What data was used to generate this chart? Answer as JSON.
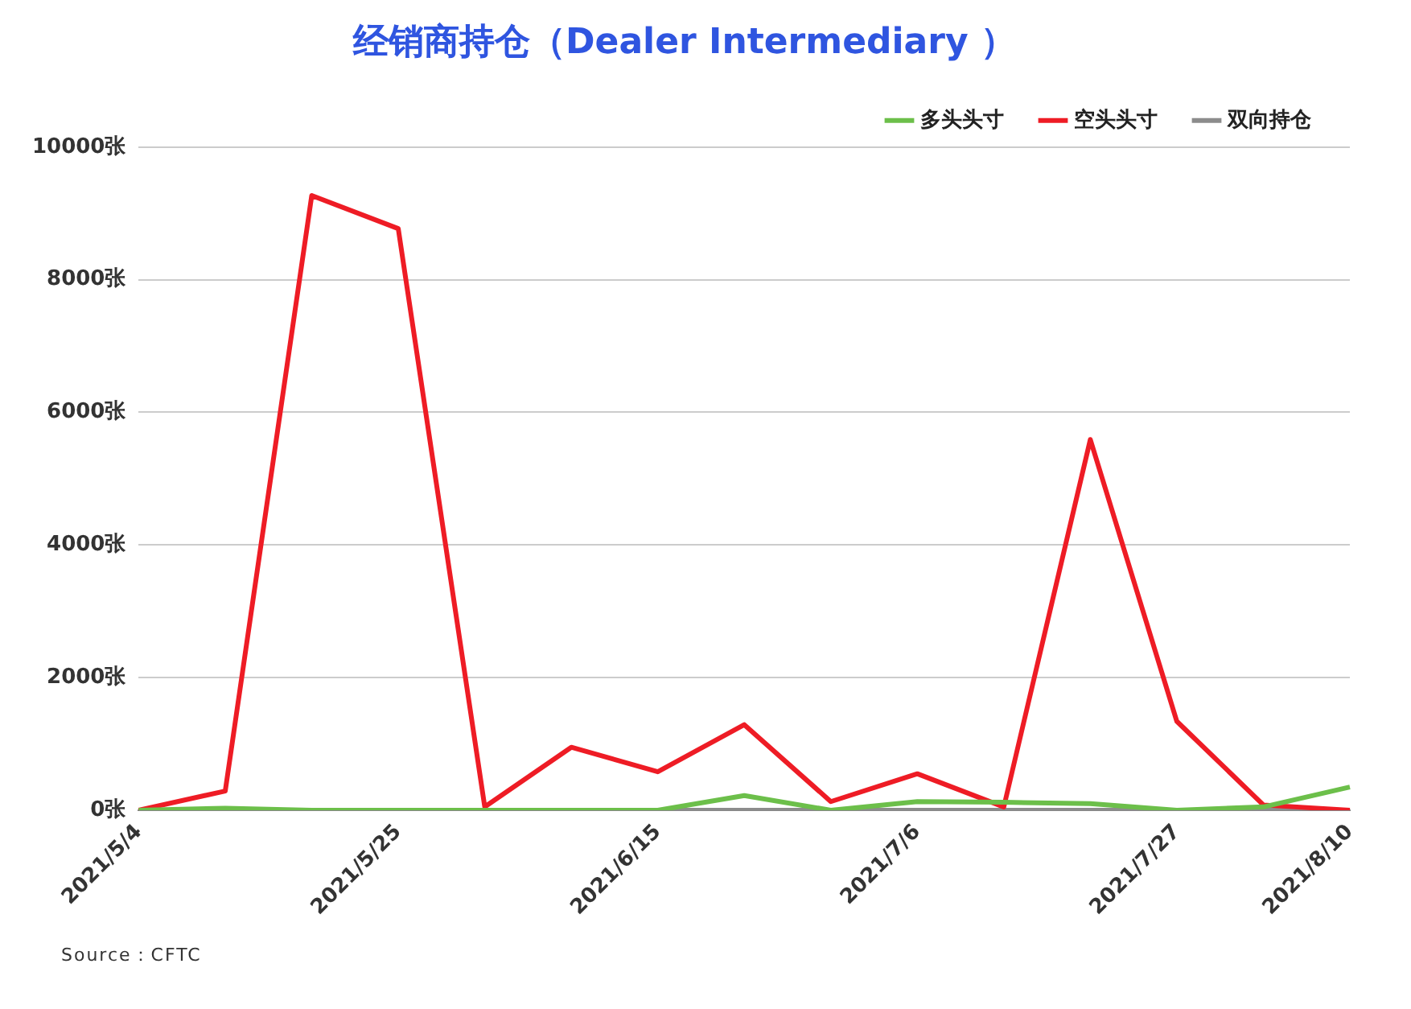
{
  "chart_data": {
    "type": "line",
    "title": "经销商持仓（Dealer Intermediary ）",
    "categories": [
      "2021/5/4",
      null,
      null,
      "2021/5/25",
      null,
      null,
      "2021/6/15",
      null,
      null,
      "2021/7/6",
      null,
      null,
      "2021/7/27",
      null,
      "2021/8/10"
    ],
    "series": [
      {
        "name": "多头头寸",
        "color": "#6cbf4a",
        "values": [
          0,
          30,
          0,
          0,
          0,
          0,
          0,
          220,
          0,
          130,
          120,
          100,
          0,
          50,
          350
        ]
      },
      {
        "name": "空头头寸",
        "color": "#ee1c25",
        "values": [
          0,
          290,
          9270,
          8770,
          50,
          950,
          580,
          1290,
          130,
          550,
          50,
          5590,
          1340,
          80,
          0
        ]
      },
      {
        "name": "双向持仓",
        "color": "#8c8c8c",
        "values": [
          0,
          0,
          0,
          0,
          0,
          0,
          0,
          0,
          0,
          0,
          0,
          0,
          0,
          0,
          0
        ]
      }
    ],
    "ylim": [
      0,
      10000
    ],
    "yticks": [
      {
        "value": 0,
        "label": "0张"
      },
      {
        "value": 2000,
        "label": "2000张"
      },
      {
        "value": 4000,
        "label": "4000张"
      },
      {
        "value": 6000,
        "label": "6000张"
      },
      {
        "value": 8000,
        "label": "8000张"
      },
      {
        "value": 10000,
        "label": "10000张"
      }
    ],
    "grid": "y",
    "legend": "top right",
    "marker": "none",
    "line_style": "solid",
    "annotations": [
      "Source：CFTC"
    ]
  }
}
